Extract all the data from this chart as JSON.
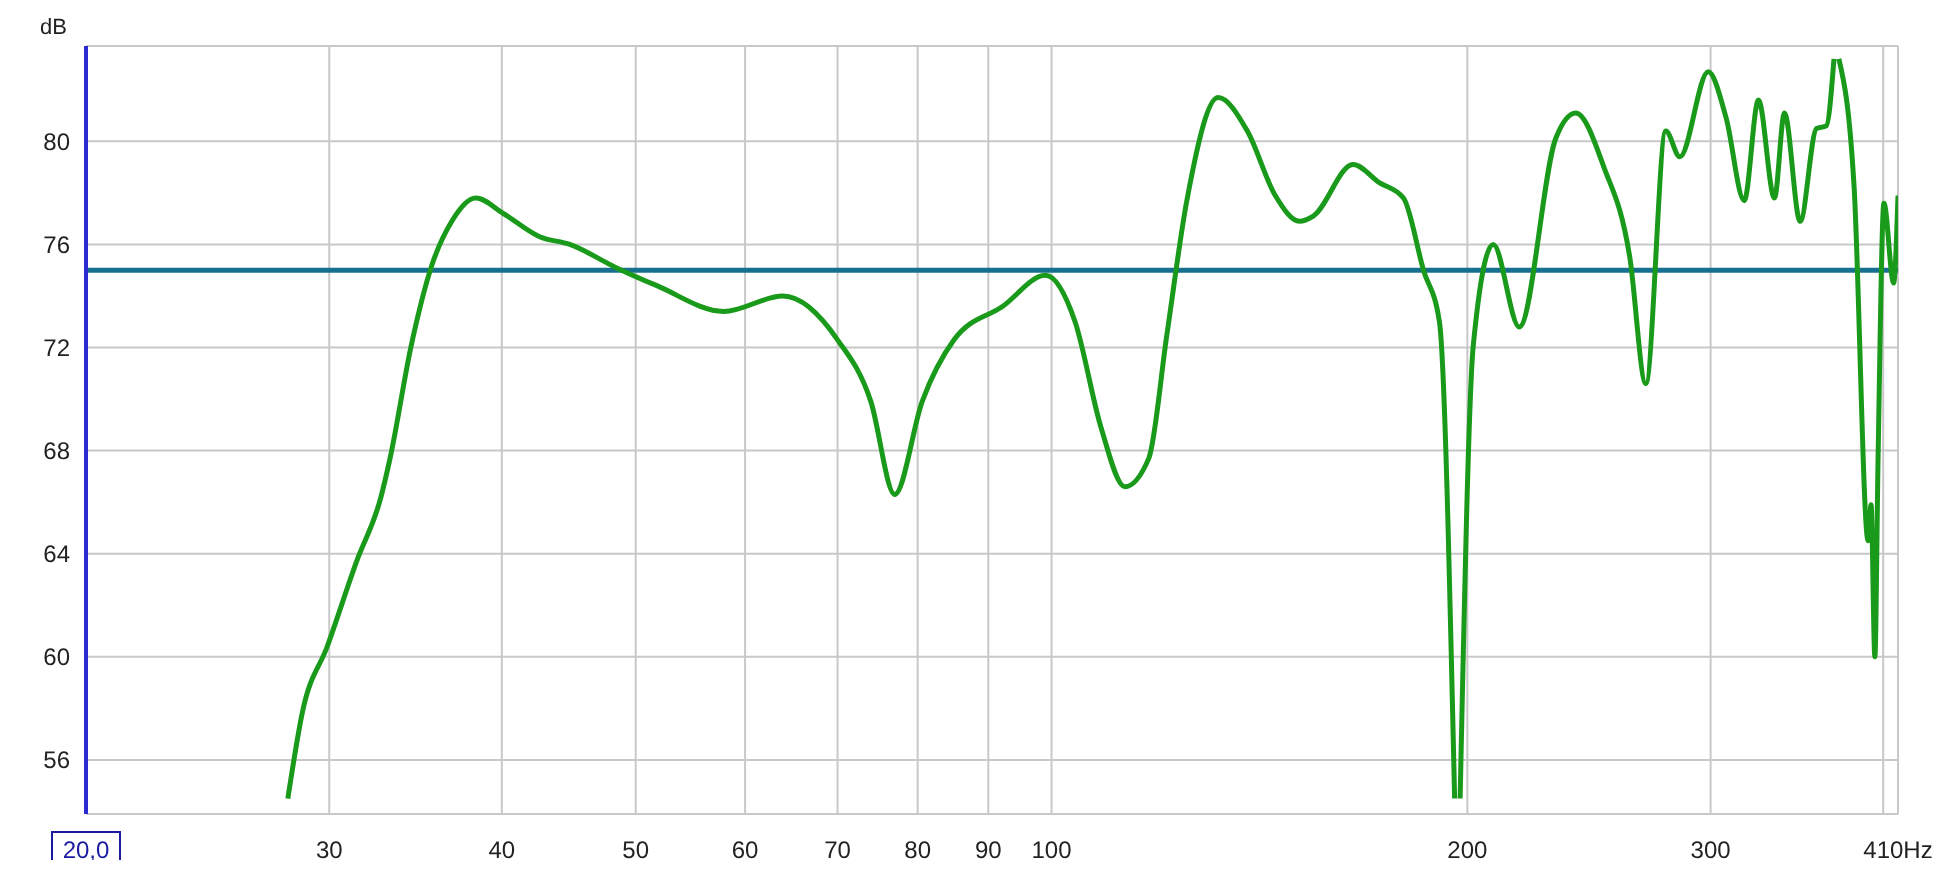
{
  "chart_data": {
    "type": "line",
    "ylabel": "dB",
    "log": "x",
    "grid": true,
    "legend": false,
    "marker": "none",
    "line_style": "solid",
    "xlim": [
      20,
      410
    ],
    "ylim": [
      53.9,
      83.7
    ],
    "xticks": [
      {
        "value": 20,
        "label": "20,0"
      },
      30,
      40,
      50,
      60,
      70,
      80,
      90,
      100,
      200,
      300,
      {
        "value": 400,
        "label": null
      },
      {
        "value": 410,
        "label": "410Hz"
      }
    ],
    "yticks": [
      56,
      60,
      64,
      68,
      72,
      76,
      80
    ],
    "x": [
      28.0,
      28.7,
      29.9,
      31.4,
      32.7,
      33.2,
      34.4,
      35.6,
      36.8,
      38.3,
      40.1,
      42.6,
      44.8,
      48.4,
      51.8,
      57.9,
      63.9,
      70.0,
      74.0,
      77.0,
      80.6,
      85.0,
      92.2,
      99.0,
      104.0,
      108.6,
      113.0,
      117.6,
      121.2,
      125.3,
      132.0,
      138.6,
      145.2,
      151.2,
      154.7,
      165.3,
      172.7,
      179.8,
      185.9,
      190.9,
      195.8,
      196.7,
      197.6,
      202.0,
      208.8,
      218.1,
      231.7,
      239.6,
      251.1,
      262.2,
      269.3,
      278.4,
      285.0,
      298.8,
      307.9,
      317.3,
      324.9,
      333.7,
      339.3,
      348.3,
      357.9,
      363.8,
      368.5,
      369.8,
      371.5,
      381.1,
      390.1,
      392,
      394.5,
      396.6,
      400.5,
      407,
      410
    ],
    "series": [
      {
        "color": "#1a9a1a",
        "values": [
          54.5,
          57.9,
          60.4,
          63.7,
          66.2,
          67.7,
          72.1,
          75.2,
          76.9,
          77.8,
          77.2,
          76.3,
          76.0,
          75.1,
          74.4,
          73.4,
          74.0,
          72.3,
          69.9,
          66.3,
          69.9,
          72.3,
          73.6,
          74.8,
          73.0,
          68.9,
          66.6,
          67.7,
          72.5,
          77.7,
          81.7,
          80.4,
          77.9,
          76.9,
          77.1,
          79.1,
          78.4,
          77.8,
          75.0,
          73.0,
          54.5,
          null,
          54.5,
          72.1,
          76.0,
          72.8,
          80.1,
          81.1,
          79.0,
          75.5,
          70.6,
          80.4,
          79.4,
          82.7,
          80.9,
          77.7,
          81.6,
          77.8,
          81.1,
          76.9,
          80.5,
          80.6,
          83.2,
          null,
          83.2,
          78.2,
          64.5,
          65.9,
          60.0,
          67.7,
          77.6,
          74.5,
          77.9
        ]
      }
    ],
    "ref_lines": [
      {
        "axis": "y",
        "value": 75,
        "color": "#17708f"
      }
    ]
  }
}
